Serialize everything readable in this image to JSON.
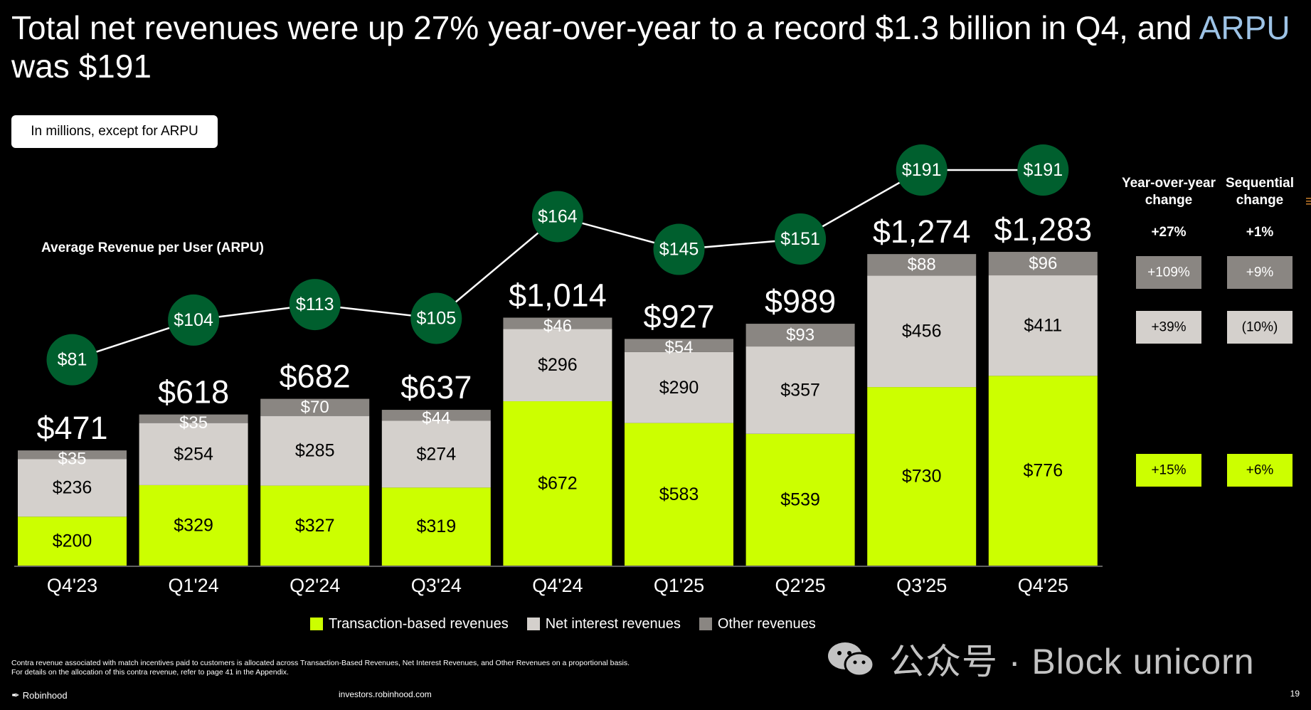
{
  "title": {
    "main": "Total net revenues were up 27% year-over-year to a record $1.3 billion in Q4, and ",
    "arpu_word": "ARPU",
    "tail": " was $191"
  },
  "units_note": "In millions, except for ARPU",
  "arpu_label": "Average Revenue per User (ARPU)",
  "change_headers": {
    "yoy": "Year-over-year change",
    "seq": "Sequential change"
  },
  "changes": {
    "total": {
      "yoy": "+27%",
      "seq": "+1%"
    },
    "other": {
      "yoy": "+109%",
      "seq": "+9%"
    },
    "net_interest": {
      "yoy": "+39%",
      "seq": "(10%)"
    },
    "transaction": {
      "yoy": "+15%",
      "seq": "+6%"
    }
  },
  "colors": {
    "transaction": "#ccff00",
    "net_interest": "#d4d0cc",
    "other": "#8a8682",
    "arpu_bubble": "#005f2e",
    "arpu_text": "#9dc3e6"
  },
  "chart_data": {
    "type": "bar",
    "stacked": true,
    "categories": [
      "Q4'23",
      "Q1'24",
      "Q2'24",
      "Q3'24",
      "Q4'24",
      "Q1'25",
      "Q2'25",
      "Q3'25",
      "Q4'25"
    ],
    "series": [
      {
        "name": "Transaction-based revenues",
        "key": "transaction",
        "values": [
          200,
          329,
          327,
          319,
          672,
          583,
          539,
          730,
          776
        ],
        "labels": [
          "$200",
          "$329",
          "$327",
          "$319",
          "$672",
          "$583",
          "$539",
          "$730",
          "$776"
        ]
      },
      {
        "name": "Net interest revenues",
        "key": "net_interest",
        "values": [
          236,
          254,
          285,
          274,
          296,
          290,
          357,
          456,
          411
        ],
        "labels": [
          "$236",
          "$254",
          "$285",
          "$274",
          "$296",
          "$290",
          "$357",
          "$456",
          "$411"
        ]
      },
      {
        "name": "Other revenues",
        "key": "other",
        "values": [
          35,
          35,
          70,
          44,
          46,
          54,
          93,
          88,
          96
        ],
        "labels": [
          "$35",
          "$35",
          "$70",
          "$44",
          "$46",
          "$54",
          "$93",
          "$88",
          "$96"
        ]
      }
    ],
    "totals": [
      471,
      618,
      682,
      637,
      1014,
      927,
      989,
      1274,
      1283
    ],
    "total_labels": [
      "$471",
      "$618",
      "$682",
      "$637",
      "$1,014",
      "$927",
      "$989",
      "$1,274",
      "$1,283"
    ],
    "arpu": {
      "name": "Average Revenue per User (ARPU)",
      "values": [
        81,
        104,
        113,
        105,
        164,
        145,
        151,
        191,
        191
      ],
      "labels": [
        "$81",
        "$104",
        "$113",
        "$105",
        "$164",
        "$145",
        "$151",
        "$191",
        "$191"
      ]
    },
    "ylim": [
      0,
      1300
    ],
    "unit": "In millions, except for ARPU"
  },
  "legend": [
    {
      "label": "Transaction-based revenues",
      "color_key": "transaction"
    },
    {
      "label": "Net interest revenues",
      "color_key": "net_interest"
    },
    {
      "label": "Other revenues",
      "color_key": "other"
    }
  ],
  "footnote": {
    "line1": "Contra revenue associated with match incentives paid to customers is allocated across Transaction-Based Revenues, Net Interest Revenues, and Other Revenues on a proportional basis.",
    "line2": "For details on the allocation of this contra revenue, refer to page 41 in the Appendix."
  },
  "brand": "Robinhood",
  "website": "investors.robinhood.com",
  "page_number": "19",
  "watermark": "公众号 · Block unicorn"
}
